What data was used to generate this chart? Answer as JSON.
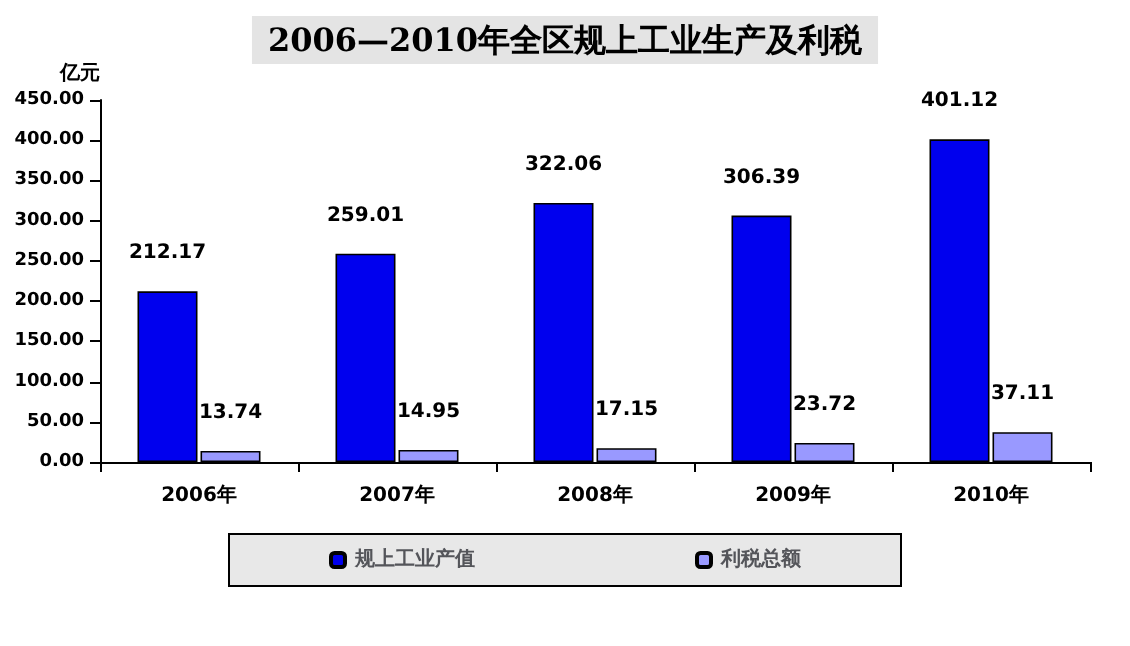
{
  "chart_data": {
    "type": "bar",
    "title": "2006—2010年全区规上工业生产及利税",
    "ylabel": "亿元",
    "categories": [
      "2006年",
      "2007年",
      "2008年",
      "2009年",
      "2010年"
    ],
    "series": [
      {
        "name": "规上工业产值",
        "color": "#0000ee",
        "values": [
          212.17,
          259.01,
          322.06,
          306.39,
          401.12
        ]
      },
      {
        "name": "利税总额",
        "color": "#9999ff",
        "values": [
          13.74,
          14.95,
          17.15,
          23.72,
          37.11
        ]
      }
    ],
    "ylim": [
      0,
      450
    ],
    "yticks": [
      {
        "value": 0,
        "label": "0.00"
      },
      {
        "value": 50,
        "label": "50.00"
      },
      {
        "value": 100,
        "label": "100.00"
      },
      {
        "value": 150,
        "label": "150.00"
      },
      {
        "value": 200,
        "label": "200.00"
      },
      {
        "value": 250,
        "label": "250.00"
      },
      {
        "value": 300,
        "label": "300.00"
      },
      {
        "value": 350,
        "label": "350.00"
      },
      {
        "value": 400,
        "label": "400.00"
      },
      {
        "value": 450,
        "label": "450.00"
      }
    ],
    "data_labels": true,
    "grid": false,
    "legend": "bottom"
  }
}
